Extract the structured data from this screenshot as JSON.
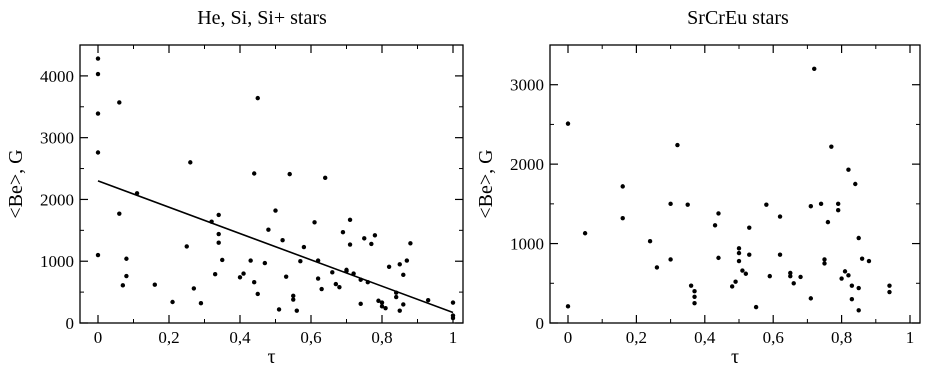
{
  "chart_data": [
    {
      "type": "scatter",
      "title": "He, Si, Si+ stars",
      "xlabel": "τ",
      "ylabel": "<Be>, G",
      "xlim": [
        0,
        1
      ],
      "ylim": [
        0,
        4500
      ],
      "x_ticks": [
        "0",
        "0,2",
        "0,4",
        "0,6",
        "0,8",
        "1"
      ],
      "y_ticks": [
        "0",
        "1000",
        "2000",
        "3000",
        "4000"
      ],
      "grid": false,
      "legend": "none",
      "trend_line": {
        "x": [
          0,
          1
        ],
        "y": [
          2300,
          170
        ]
      },
      "points": [
        [
          0.0,
          4280
        ],
        [
          0.0,
          4030
        ],
        [
          0.0,
          3390
        ],
        [
          0.0,
          2760
        ],
        [
          0.0,
          1100
        ],
        [
          0.06,
          3570
        ],
        [
          0.06,
          1770
        ],
        [
          0.08,
          1040
        ],
        [
          0.08,
          760
        ],
        [
          0.07,
          610
        ],
        [
          0.11,
          2100
        ],
        [
          0.16,
          620
        ],
        [
          0.21,
          340
        ],
        [
          0.25,
          1240
        ],
        [
          0.26,
          2600
        ],
        [
          0.27,
          560
        ],
        [
          0.29,
          320
        ],
        [
          0.32,
          1640
        ],
        [
          0.33,
          790
        ],
        [
          0.34,
          1750
        ],
        [
          0.34,
          1440
        ],
        [
          0.34,
          1300
        ],
        [
          0.35,
          1020
        ],
        [
          0.4,
          740
        ],
        [
          0.41,
          800
        ],
        [
          0.43,
          1010
        ],
        [
          0.44,
          2420
        ],
        [
          0.44,
          660
        ],
        [
          0.45,
          3640
        ],
        [
          0.45,
          470
        ],
        [
          0.47,
          970
        ],
        [
          0.48,
          1510
        ],
        [
          0.5,
          1820
        ],
        [
          0.51,
          220
        ],
        [
          0.52,
          1340
        ],
        [
          0.53,
          750
        ],
        [
          0.54,
          2410
        ],
        [
          0.55,
          440
        ],
        [
          0.55,
          380
        ],
        [
          0.56,
          200
        ],
        [
          0.57,
          1000
        ],
        [
          0.58,
          1230
        ],
        [
          0.61,
          1630
        ],
        [
          0.62,
          1010
        ],
        [
          0.62,
          720
        ],
        [
          0.63,
          550
        ],
        [
          0.64,
          2350
        ],
        [
          0.66,
          820
        ],
        [
          0.67,
          630
        ],
        [
          0.68,
          580
        ],
        [
          0.69,
          1470
        ],
        [
          0.7,
          840
        ],
        [
          0.7,
          860
        ],
        [
          0.71,
          1670
        ],
        [
          0.71,
          1270
        ],
        [
          0.72,
          800
        ],
        [
          0.74,
          310
        ],
        [
          0.74,
          700
        ],
        [
          0.75,
          1370
        ],
        [
          0.76,
          660
        ],
        [
          0.77,
          1280
        ],
        [
          0.78,
          1420
        ],
        [
          0.79,
          360
        ],
        [
          0.8,
          330
        ],
        [
          0.8,
          270
        ],
        [
          0.81,
          240
        ],
        [
          0.82,
          910
        ],
        [
          0.84,
          490
        ],
        [
          0.84,
          420
        ],
        [
          0.85,
          950
        ],
        [
          0.85,
          200
        ],
        [
          0.86,
          300
        ],
        [
          0.86,
          780
        ],
        [
          0.87,
          1010
        ],
        [
          0.88,
          1290
        ],
        [
          0.93,
          370
        ],
        [
          1.0,
          330
        ],
        [
          1.0,
          120
        ],
        [
          1.0,
          80
        ]
      ]
    },
    {
      "type": "scatter",
      "title": "SrCrEu stars",
      "xlabel": "τ",
      "ylabel": "<Be>, G",
      "xlim": [
        0,
        1
      ],
      "ylim": [
        0,
        3500
      ],
      "x_ticks": [
        "0",
        "0,2",
        "0,4",
        "0,6",
        "0,8",
        "1"
      ],
      "y_ticks": [
        "0",
        "1000",
        "2000",
        "3000"
      ],
      "grid": false,
      "legend": "none",
      "points": [
        [
          0.0,
          2510
        ],
        [
          0.0,
          210
        ],
        [
          0.05,
          1130
        ],
        [
          0.16,
          1720
        ],
        [
          0.16,
          1320
        ],
        [
          0.24,
          1030
        ],
        [
          0.26,
          700
        ],
        [
          0.3,
          1500
        ],
        [
          0.3,
          800
        ],
        [
          0.32,
          2240
        ],
        [
          0.35,
          1490
        ],
        [
          0.36,
          470
        ],
        [
          0.37,
          400
        ],
        [
          0.37,
          330
        ],
        [
          0.37,
          250
        ],
        [
          0.43,
          1230
        ],
        [
          0.44,
          1380
        ],
        [
          0.44,
          820
        ],
        [
          0.48,
          460
        ],
        [
          0.49,
          520
        ],
        [
          0.5,
          940
        ],
        [
          0.5,
          880
        ],
        [
          0.5,
          780
        ],
        [
          0.51,
          660
        ],
        [
          0.52,
          620
        ],
        [
          0.53,
          1200
        ],
        [
          0.53,
          860
        ],
        [
          0.55,
          200
        ],
        [
          0.58,
          1490
        ],
        [
          0.59,
          590
        ],
        [
          0.62,
          1340
        ],
        [
          0.62,
          860
        ],
        [
          0.65,
          630
        ],
        [
          0.65,
          590
        ],
        [
          0.66,
          500
        ],
        [
          0.68,
          580
        ],
        [
          0.71,
          1470
        ],
        [
          0.71,
          310
        ],
        [
          0.72,
          3200
        ],
        [
          0.74,
          1500
        ],
        [
          0.75,
          800
        ],
        [
          0.75,
          750
        ],
        [
          0.76,
          1270
        ],
        [
          0.77,
          2220
        ],
        [
          0.79,
          1420
        ],
        [
          0.79,
          1500
        ],
        [
          0.8,
          560
        ],
        [
          0.81,
          650
        ],
        [
          0.82,
          1930
        ],
        [
          0.82,
          600
        ],
        [
          0.83,
          470
        ],
        [
          0.83,
          300
        ],
        [
          0.84,
          1750
        ],
        [
          0.85,
          160
        ],
        [
          0.85,
          1070
        ],
        [
          0.86,
          810
        ],
        [
          0.88,
          780
        ],
        [
          0.94,
          470
        ],
        [
          0.94,
          390
        ],
        [
          0.85,
          440
        ]
      ]
    }
  ]
}
